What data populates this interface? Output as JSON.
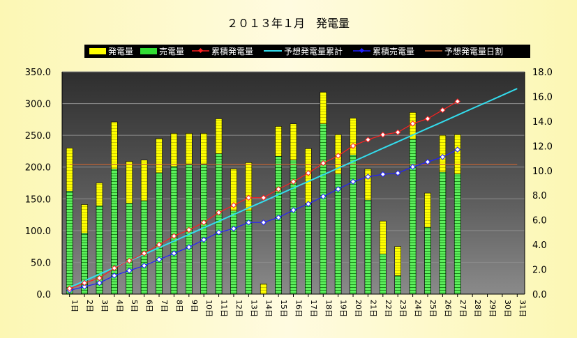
{
  "chart_data": {
    "type": "bar",
    "title": "２０１３年１月　発電量",
    "categories": [
      "1日",
      "2日",
      "3日",
      "4日",
      "5日",
      "6日",
      "7日",
      "8日",
      "9日",
      "10日",
      "11日",
      "12日",
      "13日",
      "14日",
      "15日",
      "16日",
      "17日",
      "18日",
      "19日",
      "20日",
      "21日",
      "22日",
      "23日",
      "24日",
      "25日",
      "26日",
      "27日",
      "28日",
      "29日",
      "30日",
      "31日"
    ],
    "ylim_left": [
      0,
      350
    ],
    "yticks_left": [
      "0.0",
      "50.0",
      "100.0",
      "150.0",
      "200.0",
      "250.0",
      "300.0",
      "350.0"
    ],
    "ylim_right": [
      0,
      18
    ],
    "yticks_right": [
      "0.0",
      "2.0",
      "4.0",
      "6.0",
      "8.0",
      "10.0",
      "12.0",
      "14.0",
      "16.0",
      "18.0"
    ],
    "grid": true,
    "legend_position": "top",
    "series": [
      {
        "name": "発電量",
        "kind": "bar",
        "axis": "left",
        "color": "#ffff00",
        "values": [
          230,
          141,
          175,
          271,
          209,
          211,
          245,
          253,
          253,
          253,
          276,
          197,
          207,
          16,
          264,
          268,
          229,
          318,
          251,
          277,
          197,
          115,
          75,
          286,
          159,
          250,
          251,
          null,
          null,
          null,
          null
        ]
      },
      {
        "name": "売電量",
        "kind": "bar",
        "axis": "left",
        "color": "#33dd33",
        "values": [
          162,
          96,
          139,
          197,
          143,
          147,
          191,
          201,
          205,
          205,
          221,
          131,
          131,
          0,
          217,
          211,
          143,
          268,
          189,
          219,
          148,
          63,
          29,
          244,
          105,
          192,
          189,
          null,
          null,
          null,
          null
        ]
      },
      {
        "name": "累積発電量",
        "kind": "line",
        "axis": "right",
        "color": "#ff2020",
        "values": [
          0.45,
          0.9,
          1.3,
          2.1,
          2.7,
          3.3,
          4.0,
          4.7,
          5.2,
          5.8,
          6.6,
          7.2,
          7.8,
          7.8,
          8.5,
          9.1,
          9.8,
          10.6,
          11.2,
          12.0,
          12.5,
          12.9,
          13.1,
          13.8,
          14.2,
          14.9,
          15.6,
          null,
          null,
          null,
          null
        ]
      },
      {
        "name": "予想発電量累計",
        "kind": "line",
        "axis": "right",
        "color": "#33ddee",
        "values": [
          0.54,
          1.07,
          1.61,
          2.15,
          2.68,
          3.22,
          3.76,
          4.29,
          4.83,
          5.37,
          5.9,
          6.44,
          6.98,
          7.51,
          8.05,
          8.59,
          9.12,
          9.66,
          10.2,
          10.73,
          11.27,
          11.81,
          12.34,
          12.88,
          13.42,
          13.95,
          14.49,
          15.03,
          15.56,
          16.1,
          16.64
        ]
      },
      {
        "name": "累積売電量",
        "kind": "line",
        "axis": "right",
        "color": "#2020ff",
        "values": [
          0.3,
          0.6,
          0.9,
          1.5,
          1.9,
          2.3,
          2.8,
          3.3,
          3.8,
          4.4,
          5.0,
          5.3,
          5.8,
          5.8,
          6.2,
          6.8,
          7.3,
          7.9,
          8.5,
          9.1,
          9.5,
          9.7,
          9.8,
          10.3,
          10.7,
          11.1,
          11.7,
          null,
          null,
          null,
          null
        ]
      },
      {
        "name": "予想発電量日割",
        "kind": "line",
        "axis": "left",
        "color": "#cc6633",
        "values": [
          204.0,
          204.0,
          204.0,
          204.0,
          204.0,
          204.0,
          204.0,
          204.0,
          204.0,
          204.0,
          204.0,
          204.0,
          204.0,
          204.0,
          204.0,
          204.0,
          204.0,
          204.0,
          204.0,
          204.0,
          204.0,
          204.0,
          204.0,
          204.0,
          204.0,
          204.0,
          204.0,
          204.0,
          204.0,
          204.0,
          204.0
        ]
      }
    ]
  }
}
